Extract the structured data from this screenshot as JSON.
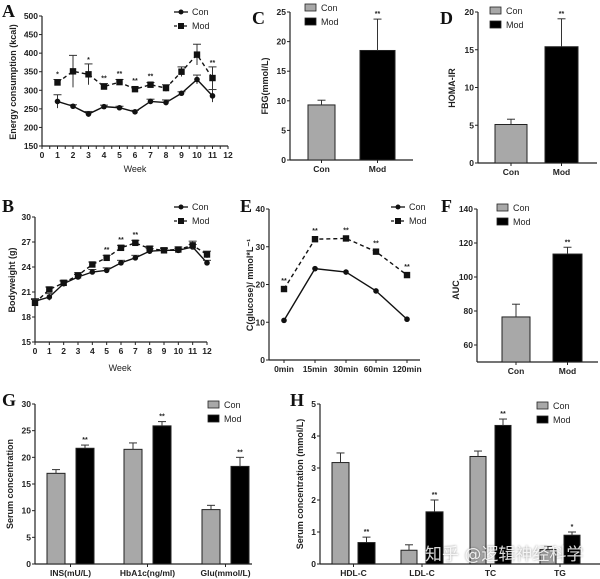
{
  "colors": {
    "con_bar": "#a8a8a8",
    "mod_bar": "#000000",
    "line": "#111111",
    "axis": "#222222"
  },
  "watermark": "知乎 @逻辑神经科学",
  "chart_data": [
    {
      "id": "A",
      "type": "line",
      "letter": "A",
      "title": "",
      "xlabel": "Week",
      "ylabel": "Energy consumption (kcal)",
      "xlim": [
        0,
        12
      ],
      "ylim": [
        150,
        500
      ],
      "xticks": [
        0,
        1,
        2,
        3,
        4,
        5,
        6,
        7,
        8,
        9,
        10,
        11,
        12
      ],
      "yticks": [
        150,
        200,
        250,
        300,
        350,
        400,
        450,
        500
      ],
      "legend": {
        "position": "top-right",
        "entries": [
          "Con",
          "Mod"
        ]
      },
      "series": [
        {
          "name": "Con",
          "style": "solid",
          "marker": "circle",
          "x": [
            1,
            2,
            3,
            4,
            5,
            6,
            7,
            8,
            9,
            10,
            11
          ],
          "y": [
            270,
            257,
            236,
            256,
            253,
            242,
            270,
            267,
            292,
            329,
            285
          ],
          "err": [
            18,
            4,
            7,
            4,
            4,
            4,
            6,
            7,
            4,
            12,
            17
          ]
        },
        {
          "name": "Mod",
          "style": "dashed",
          "marker": "square",
          "x": [
            1,
            2,
            3,
            4,
            5,
            6,
            7,
            8,
            9,
            10,
            11
          ],
          "y": [
            321,
            351,
            343,
            310,
            322,
            303,
            315,
            306,
            350,
            396,
            333
          ],
          "err": [
            8,
            43,
            28,
            8,
            7,
            6,
            6,
            9,
            13,
            28,
            30
          ],
          "sig": [
            "*",
            "",
            "*",
            "**",
            "**",
            "**",
            "**",
            "",
            "",
            "",
            "**"
          ]
        }
      ]
    },
    {
      "id": "C",
      "type": "bar",
      "letter": "C",
      "title": "",
      "xlabel": "",
      "ylabel": "FBG(mmol/L)",
      "categories": [
        "Con",
        "Mod"
      ],
      "ylim": [
        0,
        25
      ],
      "yticks": [
        0,
        5,
        10,
        15,
        20,
        25
      ],
      "values": [
        9.3,
        18.5
      ],
      "err": [
        0.8,
        5.3
      ],
      "sig": [
        "",
        "**"
      ],
      "legend": {
        "position": "top-left",
        "entries": [
          "Con",
          "Mod"
        ]
      }
    },
    {
      "id": "D",
      "type": "bar",
      "letter": "D",
      "title": "",
      "xlabel": "",
      "ylabel": "HOMA-IR",
      "categories": [
        "Con",
        "Mod"
      ],
      "ylim": [
        0,
        20
      ],
      "yticks": [
        0,
        5,
        10,
        15,
        20
      ],
      "values": [
        5.1,
        15.4
      ],
      "err": [
        0.7,
        3.7
      ],
      "sig": [
        "",
        "**"
      ],
      "legend": {
        "position": "top-left",
        "entries": [
          "Con",
          "Mod"
        ]
      }
    },
    {
      "id": "B",
      "type": "line",
      "letter": "B",
      "title": "",
      "xlabel": "Week",
      "ylabel": "Bodyweight (g)",
      "xlim": [
        0,
        12
      ],
      "ylim": [
        15,
        30
      ],
      "xticks": [
        0,
        1,
        2,
        3,
        4,
        5,
        6,
        7,
        8,
        9,
        10,
        11,
        12
      ],
      "yticks": [
        15,
        18,
        21,
        24,
        27,
        30
      ],
      "legend": {
        "position": "top-right",
        "entries": [
          "Con",
          "Mod"
        ]
      },
      "series": [
        {
          "name": "Con",
          "style": "solid",
          "marker": "circle",
          "x": [
            0,
            1,
            2,
            3,
            4,
            5,
            6,
            7,
            8,
            9,
            10,
            11,
            12
          ],
          "y": [
            19.9,
            20.4,
            22.0,
            22.8,
            23.4,
            23.6,
            24.5,
            25.1,
            25.9,
            26.0,
            26.0,
            26.4,
            24.5
          ],
          "err": [
            0.3,
            0.4,
            0.3,
            0.3,
            0.3,
            0.3,
            0.3,
            0.3,
            0.3,
            0.2,
            0.2,
            0.3,
            0.3
          ]
        },
        {
          "name": "Mod",
          "style": "dashed",
          "marker": "square",
          "x": [
            0,
            1,
            2,
            3,
            4,
            5,
            6,
            7,
            8,
            9,
            10,
            11,
            12
          ],
          "y": [
            19.7,
            21.3,
            22.1,
            23.0,
            24.3,
            25.1,
            26.3,
            26.9,
            26.2,
            26.0,
            26.1,
            26.6,
            25.5
          ],
          "err": [
            0.4,
            0.3,
            0.3,
            0.3,
            0.3,
            0.3,
            0.3,
            0.3,
            0.3,
            0.3,
            0.3,
            0.5,
            0.4
          ],
          "sig": [
            "",
            "",
            "",
            "",
            "",
            "**",
            "**",
            "**",
            "",
            "",
            "",
            "",
            ""
          ]
        }
      ]
    },
    {
      "id": "E",
      "type": "line",
      "letter": "E",
      "title": "",
      "xlabel": "",
      "ylabel": "C(glucose)/ mmol*L⁻¹",
      "categories": [
        "0min",
        "15min",
        "30min",
        "60min",
        "120min"
      ],
      "ylim": [
        0,
        40
      ],
      "yticks": [
        0,
        10,
        20,
        30,
        40
      ],
      "legend": {
        "position": "top-right",
        "entries": [
          "Con",
          "Mod"
        ]
      },
      "series": [
        {
          "name": "Con",
          "style": "solid",
          "marker": "circle",
          "y": [
            10.5,
            24.2,
            23.3,
            18.3,
            10.8
          ]
        },
        {
          "name": "Mod",
          "style": "dashed",
          "marker": "square",
          "y": [
            18.8,
            32.0,
            32.2,
            28.7,
            22.5
          ],
          "sig": [
            "**",
            "**",
            "**",
            "**",
            "**"
          ]
        }
      ]
    },
    {
      "id": "F",
      "type": "bar",
      "letter": "F",
      "title": "",
      "xlabel": "",
      "ylabel": "AUC",
      "categories": [
        "Con",
        "Mod"
      ],
      "ylim": [
        50,
        140
      ],
      "yticks": [
        60,
        80,
        100,
        120,
        140
      ],
      "values": [
        76.5,
        113.5
      ],
      "err": [
        7.5,
        4.0
      ],
      "sig": [
        "",
        "**"
      ],
      "legend": {
        "position": "top-left",
        "entries": [
          "Con",
          "Mod"
        ]
      }
    },
    {
      "id": "G",
      "type": "bar",
      "letter": "G",
      "title": "",
      "xlabel": "",
      "ylabel": "Serum concentration",
      "categories": [
        "INS(mU/L)",
        "HbA1c(ng/ml)",
        "Glu(mmol/L)"
      ],
      "ylim": [
        0,
        30
      ],
      "yticks": [
        0,
        5,
        10,
        15,
        20,
        25,
        30
      ],
      "legend": {
        "position": "top-right",
        "entries": [
          "Con",
          "Mod"
        ]
      },
      "series": [
        {
          "name": "Con",
          "values": [
            17.0,
            21.5,
            10.2
          ],
          "err": [
            0.7,
            1.2,
            0.8
          ],
          "sig": [
            "",
            "",
            ""
          ]
        },
        {
          "name": "Mod",
          "values": [
            21.7,
            25.9,
            18.3
          ],
          "err": [
            0.6,
            0.8,
            1.7
          ],
          "sig": [
            "**",
            "**",
            "**"
          ]
        }
      ]
    },
    {
      "id": "H",
      "type": "bar",
      "letter": "H",
      "title": "",
      "xlabel": "",
      "ylabel": "Serum concentration (mmol/L)",
      "categories": [
        "HDL-C",
        "LDL-C",
        "TC",
        "TG"
      ],
      "ylim": [
        0,
        5
      ],
      "yticks": [
        0,
        1,
        2,
        3,
        4,
        5
      ],
      "legend": {
        "position": "top-right",
        "entries": [
          "Con",
          "Mod"
        ]
      },
      "series": [
        {
          "name": "Con",
          "values": [
            3.17,
            0.43,
            3.36,
            0.45
          ],
          "err": [
            0.3,
            0.17,
            0.17,
            0.1
          ],
          "sig": [
            "",
            "",
            "",
            ""
          ]
        },
        {
          "name": "Mod",
          "values": [
            0.67,
            1.63,
            4.33,
            0.9
          ],
          "err": [
            0.17,
            0.37,
            0.2,
            0.1
          ],
          "sig": [
            "**",
            "**",
            "**",
            "*"
          ]
        }
      ]
    }
  ]
}
